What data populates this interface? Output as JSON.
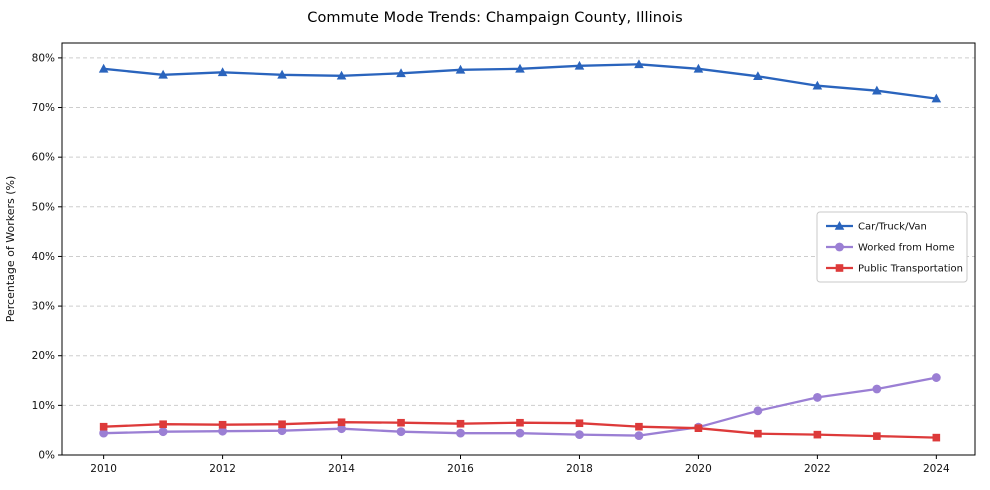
{
  "chart_data": {
    "type": "line",
    "title": "Commute Mode Trends: Champaign County, Illinois",
    "xlabel": "",
    "ylabel": "Percentage of Workers (%)",
    "x": [
      2010,
      2011,
      2012,
      2013,
      2014,
      2015,
      2016,
      2017,
      2018,
      2019,
      2020,
      2021,
      2022,
      2023,
      2024
    ],
    "series": [
      {
        "name": "Car/Truck/Van",
        "color": "#2a64bd",
        "marker": "triangle",
        "values": [
          77.8,
          76.6,
          77.1,
          76.6,
          76.4,
          76.9,
          77.6,
          77.8,
          78.4,
          78.7,
          77.8,
          76.3,
          74.4,
          73.4,
          71.8
        ]
      },
      {
        "name": "Worked from Home",
        "color": "#9b7fd4",
        "marker": "circle",
        "values": [
          4.4,
          4.7,
          4.8,
          4.9,
          5.3,
          4.7,
          4.4,
          4.4,
          4.1,
          3.9,
          5.6,
          8.9,
          11.6,
          13.3,
          15.6
        ]
      },
      {
        "name": "Public Transportation",
        "color": "#dd3a3a",
        "marker": "square",
        "values": [
          5.7,
          6.2,
          6.1,
          6.2,
          6.6,
          6.5,
          6.3,
          6.5,
          6.4,
          5.7,
          5.4,
          4.3,
          4.1,
          3.8,
          3.5
        ]
      }
    ],
    "xlim": [
      2009.3,
      2024.65
    ],
    "ylim": [
      0,
      83
    ],
    "yticks": [
      0,
      10,
      20,
      30,
      40,
      50,
      60,
      70,
      80
    ],
    "ytick_suffix": "%",
    "xticks": [
      2010,
      2012,
      2014,
      2016,
      2018,
      2020,
      2022,
      2024
    ],
    "grid": "horizontal-dashed",
    "grid_color": "#cdcdcd",
    "axis_color": "#000000",
    "text_color": "#111111",
    "legend_position": "right-middle",
    "legend_border_color": "#c9c9c9"
  }
}
